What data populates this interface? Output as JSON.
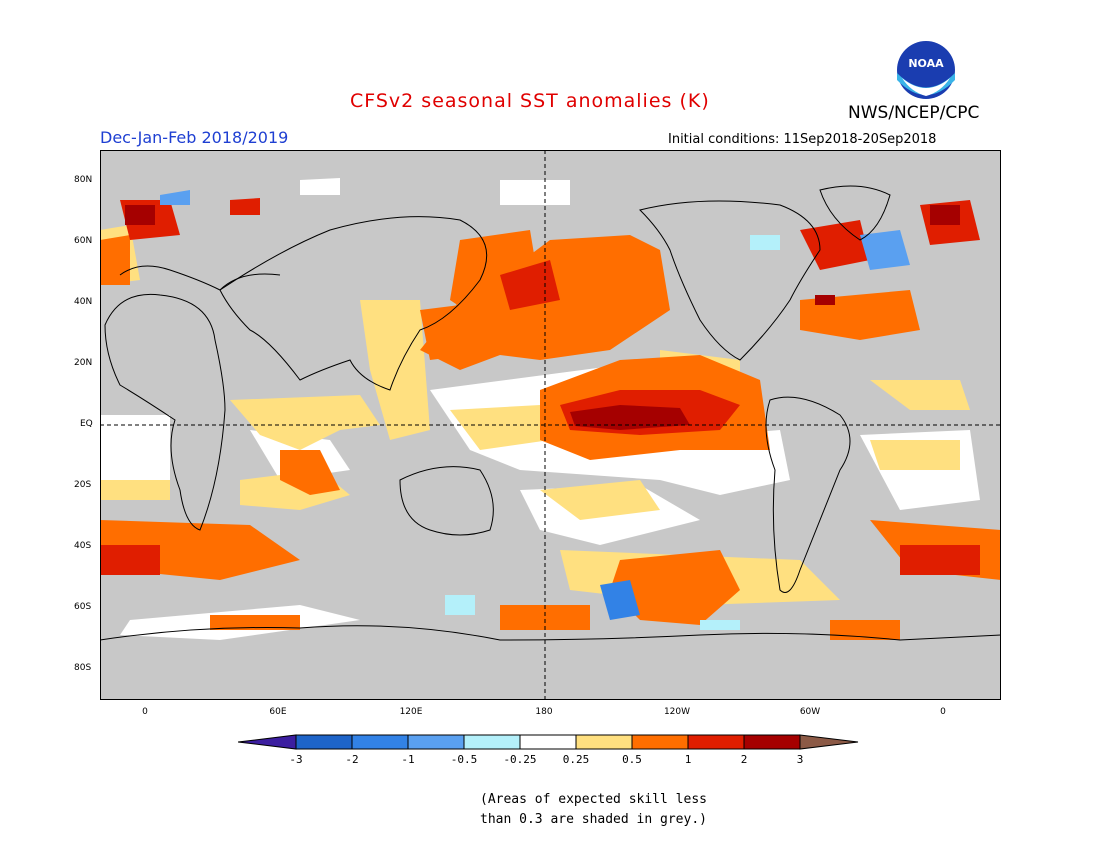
{
  "title": "CFSv2 seasonal SST anomalies (K)",
  "agency": "NWS/NCEP/CPC",
  "logo_text": "NOAA",
  "season": "Dec-Jan-Feb 2018/2019",
  "initial_conditions": "Initial conditions: 11Sep2018-20Sep2018",
  "colors": {
    "title": "#e00000",
    "season": "#1e3fd2",
    "land": "#c8c8c8",
    "ocean_low_skill": "#c8c8c8"
  },
  "map": {
    "lat_labels": [
      "80N",
      "60N",
      "40N",
      "20N",
      "EQ",
      "20S",
      "40S",
      "60S",
      "80S"
    ],
    "lon_labels": [
      "0",
      "60E",
      "120E",
      "180",
      "120W",
      "60W",
      "0"
    ]
  },
  "colorbar": {
    "labels": [
      "-3",
      "-2",
      "-1",
      "-0.5",
      "-0.25",
      "0.25",
      "0.5",
      "1",
      "2",
      "3"
    ],
    "colors": [
      "#3c1ea0",
      "#1e64c8",
      "#3282e6",
      "#5aa0f0",
      "#b4f0fa",
      "#ffffff",
      "#ffe080",
      "#ff6e00",
      "#e01e00",
      "#a50000",
      "#8c5a46"
    ]
  },
  "note": {
    "line1": "(Areas of expected skill less",
    "line2": "than 0.3 are shaded in grey.)"
  }
}
